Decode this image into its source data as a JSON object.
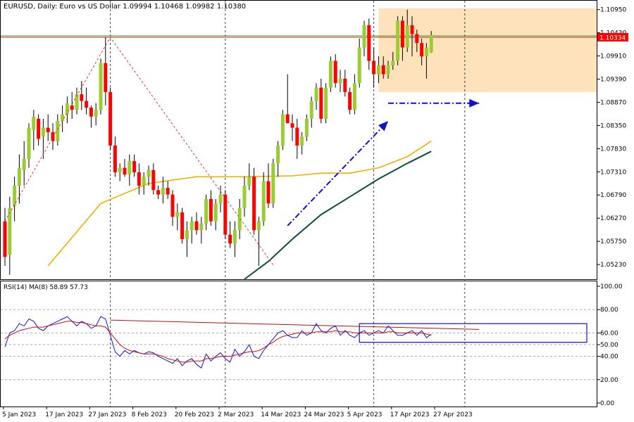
{
  "chart_data": [
    {
      "type": "candlestick",
      "header": "EURUSD, Daily:  Euro vs US Dollar  1.09994 1.10468 1.09982 1.10380",
      "symbol": "EURUSD",
      "timeframe": "Daily",
      "description": "Euro vs US Dollar",
      "last_bar_ohlc": {
        "open": 1.09994,
        "high": 1.10468,
        "low": 1.09982,
        "close": 1.1038
      },
      "current_price": "1.10334",
      "ylim": [
        1.049,
        1.1115
      ],
      "y_ticks": [
        "1.10950",
        "1.10430",
        "1.09910",
        "1.09390",
        "1.08870",
        "1.08350",
        "1.07830",
        "1.07310",
        "1.06790",
        "1.06270",
        "1.05750",
        "1.05230"
      ],
      "x_ticks": [
        "5 Jan 2023",
        "17 Jan 2023",
        "27 Jan 2023",
        "8 Feb 2023",
        "20 Feb 2023",
        "2 Mar 2023",
        "14 Mar 2023",
        "24 Mar 2023",
        "5 Apr 2023",
        "17 Apr 2023",
        "27 Apr 2023"
      ],
      "candles": [
        [
          1.062,
          1.065,
          1.052,
          1.054
        ],
        [
          1.0545,
          1.0675,
          1.05,
          1.065
        ],
        [
          1.0655,
          1.072,
          1.062,
          1.07
        ],
        [
          1.07,
          1.077,
          1.066,
          1.074
        ],
        [
          1.0735,
          1.08,
          1.07,
          1.076
        ],
        [
          1.076,
          1.084,
          1.074,
          1.083
        ],
        [
          1.0825,
          1.087,
          1.078,
          1.0855
        ],
        [
          1.085,
          1.086,
          1.079,
          1.0805
        ],
        [
          1.081,
          1.085,
          1.076,
          1.083
        ],
        [
          1.083,
          1.086,
          1.08,
          1.082
        ],
        [
          1.082,
          1.084,
          1.078,
          1.08
        ],
        [
          1.08,
          1.086,
          1.079,
          1.0845
        ],
        [
          1.0845,
          1.088,
          1.082,
          1.086
        ],
        [
          1.086,
          1.09,
          1.084,
          1.0885
        ],
        [
          1.088,
          1.091,
          1.085,
          1.087
        ],
        [
          1.087,
          1.092,
          1.086,
          1.0905
        ],
        [
          1.0905,
          1.0935,
          1.087,
          1.089
        ],
        [
          1.089,
          1.092,
          1.086,
          1.0875
        ],
        [
          1.0875,
          1.088,
          1.083,
          1.0855
        ],
        [
          1.0855,
          1.0885,
          1.0835,
          1.087
        ],
        [
          1.087,
          1.0985,
          1.086,
          1.0975
        ],
        [
          1.0975,
          1.1033,
          1.088,
          1.091
        ],
        [
          1.091,
          1.092,
          1.078,
          1.079
        ],
        [
          1.079,
          1.081,
          1.072,
          1.073
        ],
        [
          1.073,
          1.075,
          1.071,
          1.074
        ],
        [
          1.074,
          1.076,
          1.072,
          1.0725
        ],
        [
          1.0725,
          1.077,
          1.07,
          1.0755
        ],
        [
          1.0755,
          1.077,
          1.072,
          1.073
        ],
        [
          1.073,
          1.075,
          1.068,
          1.07
        ],
        [
          1.07,
          1.073,
          1.068,
          1.072
        ],
        [
          1.072,
          1.0745,
          1.07,
          1.0735
        ],
        [
          1.0735,
          1.075,
          1.068,
          1.069
        ],
        [
          1.069,
          1.07,
          1.067,
          1.068
        ],
        [
          1.068,
          1.072,
          1.066,
          1.0695
        ],
        [
          1.0695,
          1.071,
          1.067,
          1.068
        ],
        [
          1.068,
          1.069,
          1.061,
          1.063
        ],
        [
          1.063,
          1.066,
          1.06,
          1.064
        ],
        [
          1.064,
          1.065,
          1.057,
          1.058
        ],
        [
          1.058,
          1.062,
          1.054,
          1.06
        ],
        [
          1.06,
          1.063,
          1.057,
          1.062
        ],
        [
          1.062,
          1.064,
          1.059,
          1.06
        ],
        [
          1.06,
          1.063,
          1.057,
          1.0615
        ],
        [
          1.0615,
          1.068,
          1.06,
          1.067
        ],
        [
          1.067,
          1.069,
          1.061,
          1.062
        ],
        [
          1.062,
          1.067,
          1.06,
          1.066
        ],
        [
          1.066,
          1.07,
          1.064,
          1.068
        ],
        [
          1.068,
          1.069,
          1.058,
          1.059
        ],
        [
          1.059,
          1.062,
          1.056,
          1.057
        ],
        [
          1.057,
          1.062,
          1.054,
          1.06
        ],
        [
          1.06,
          1.067,
          1.058,
          1.065
        ],
        [
          1.065,
          1.072,
          1.063,
          1.07
        ],
        [
          1.07,
          1.075,
          1.069,
          1.072
        ],
        [
          1.072,
          1.074,
          1.059,
          1.06
        ],
        [
          1.06,
          1.063,
          1.052,
          1.062
        ],
        [
          1.062,
          1.073,
          1.061,
          1.071
        ],
        [
          1.071,
          1.075,
          1.065,
          1.066
        ],
        [
          1.066,
          1.076,
          1.065,
          1.075
        ],
        [
          1.075,
          1.08,
          1.072,
          1.079
        ],
        [
          1.079,
          1.087,
          1.078,
          1.086
        ],
        [
          1.086,
          1.095,
          1.084,
          1.084
        ],
        [
          1.084,
          1.086,
          1.08,
          1.083
        ],
        [
          1.083,
          1.085,
          1.076,
          1.079
        ],
        [
          1.079,
          1.082,
          1.077,
          1.081
        ],
        [
          1.081,
          1.086,
          1.08,
          1.085
        ],
        [
          1.085,
          1.09,
          1.083,
          1.089
        ],
        [
          1.089,
          1.093,
          1.087,
          1.092
        ],
        [
          1.092,
          1.094,
          1.084,
          1.085
        ],
        [
          1.085,
          1.093,
          1.084,
          1.092
        ],
        [
          1.092,
          1.099,
          1.091,
          1.098
        ],
        [
          1.098,
          1.0995,
          1.092,
          1.093
        ],
        [
          1.093,
          1.096,
          1.091,
          1.094
        ],
        [
          1.094,
          1.096,
          1.09,
          1.091
        ],
        [
          1.091,
          1.092,
          1.086,
          1.087
        ],
        [
          1.087,
          1.095,
          1.086,
          1.093
        ],
        [
          1.093,
          1.103,
          1.092,
          1.101
        ],
        [
          1.101,
          1.107,
          1.099,
          1.106
        ],
        [
          1.106,
          1.1075,
          1.096,
          1.098
        ],
        [
          1.098,
          1.101,
          1.092,
          1.095
        ],
        [
          1.095,
          1.099,
          1.093,
          1.097
        ],
        [
          1.097,
          1.099,
          1.094,
          1.095
        ],
        [
          1.095,
          1.098,
          1.094,
          1.097
        ],
        [
          1.097,
          1.1,
          1.096,
          1.098
        ],
        [
          1.098,
          1.108,
          1.097,
          1.107
        ],
        [
          1.107,
          1.108,
          1.098,
          1.101
        ],
        [
          1.101,
          1.1095,
          1.1,
          1.106
        ],
        [
          1.106,
          1.108,
          1.099,
          1.104
        ],
        [
          1.104,
          1.105,
          1.1,
          1.102
        ],
        [
          1.102,
          1.103,
          1.097,
          1.099
        ],
        [
          1.099,
          1.102,
          1.094,
          1.101
        ],
        [
          1.0999,
          1.1047,
          1.0998,
          1.1038
        ]
      ],
      "sma_slow": [
        [
          9,
          1.052
        ],
        [
          20,
          1.066
        ],
        [
          30,
          1.0705
        ],
        [
          40,
          1.072
        ],
        [
          50,
          1.072
        ],
        [
          60,
          1.0722
        ],
        [
          66,
          1.0728
        ],
        [
          72,
          1.0728
        ],
        [
          78,
          1.074
        ],
        [
          84,
          1.0765
        ],
        [
          89,
          1.08
        ]
      ],
      "sma_long": [
        [
          50,
          1.049
        ],
        [
          55,
          1.053
        ],
        [
          60,
          1.058
        ],
        [
          66,
          1.0635
        ],
        [
          72,
          1.0675
        ],
        [
          78,
          1.0715
        ],
        [
          84,
          1.075
        ],
        [
          89,
          1.0777
        ]
      ],
      "colors": {
        "bull": "#9acd32",
        "bear": "#ff0000",
        "sma_slow": "#f0b000",
        "sma_long": "#0d4d3d",
        "resistance_zone": "#fde2bb",
        "rsi": "#1212d9",
        "rsi_ma": "#c01010",
        "price_label": "#ff0000"
      },
      "annotations": {
        "resistance_zone": {
          "bar_start": 78,
          "price_low": 1.091,
          "price_high": 1.1098
        },
        "red_horizontal_line": 1.1033,
        "green_horizontal_line": 1.1036,
        "dashed_zigzag": [
          [
            0,
            1.062
          ],
          [
            22,
            1.1033
          ],
          [
            56,
            1.0522
          ]
        ],
        "blue_arrow_up": [
          [
            59,
            1.061
          ],
          [
            80,
            1.0845
          ]
        ],
        "blue_arrow_right": [
          [
            80,
            1.0885
          ],
          [
            99,
            1.0885
          ]
        ],
        "vertical_dashed_bars": [
          22,
          46,
          77,
          96
        ]
      }
    },
    {
      "type": "line",
      "label": "RSI(14) MA(8) 58.89 57.73",
      "ylim": [
        0,
        100
      ],
      "y_ticks": [
        "100.00",
        "80.00",
        "60.00",
        "50.00",
        "40.00",
        "20.00",
        "0.00"
      ],
      "levels": [
        80,
        60,
        50,
        40,
        20
      ],
      "series": [
        {
          "name": "RSI(14)",
          "values": [
            48,
            60,
            62,
            68,
            66,
            72,
            70,
            64,
            62,
            66,
            68,
            70,
            72,
            74,
            70,
            66,
            70,
            68,
            64,
            66,
            74,
            72,
            58,
            44,
            40,
            45,
            42,
            45,
            43,
            42,
            44,
            43,
            40,
            38,
            36,
            34,
            38,
            32,
            36,
            38,
            33,
            30,
            42,
            36,
            40,
            43,
            38,
            35,
            46,
            40,
            44,
            50,
            40,
            38,
            45,
            50,
            55,
            60,
            62,
            58,
            56,
            56,
            62,
            58,
            60,
            68,
            62,
            60,
            64,
            66,
            58,
            62,
            58,
            56,
            60,
            62,
            58,
            60,
            62,
            60,
            66,
            62,
            58,
            58,
            60,
            62,
            58,
            62,
            56,
            59
          ]
        },
        {
          "name": "MA(8)",
          "values": [
            55,
            58,
            60,
            62,
            63,
            64,
            65,
            65,
            65,
            66,
            67,
            68,
            69,
            70,
            70,
            69,
            69,
            68,
            67,
            66,
            66,
            65,
            60,
            55,
            50,
            47,
            45,
            44,
            43,
            42,
            42,
            42,
            41,
            40,
            38,
            37,
            36,
            35,
            35,
            36,
            36,
            36,
            38,
            38,
            39,
            40,
            40,
            40,
            41,
            42,
            43,
            44,
            44,
            45,
            47,
            50,
            52,
            55,
            57,
            58,
            59,
            60,
            60,
            60,
            60,
            61,
            61,
            61,
            61,
            62,
            61,
            61,
            61,
            60,
            60,
            60,
            60,
            60,
            60,
            60,
            61,
            61,
            60,
            60,
            60,
            60,
            60,
            60,
            59,
            58
          ]
        }
      ],
      "annotations": {
        "trend_line": [
          [
            22,
            71
          ],
          [
            99,
            63
          ]
        ],
        "box": {
          "bar_start": 74,
          "value_low": 52,
          "value_high": 68
        }
      }
    }
  ]
}
